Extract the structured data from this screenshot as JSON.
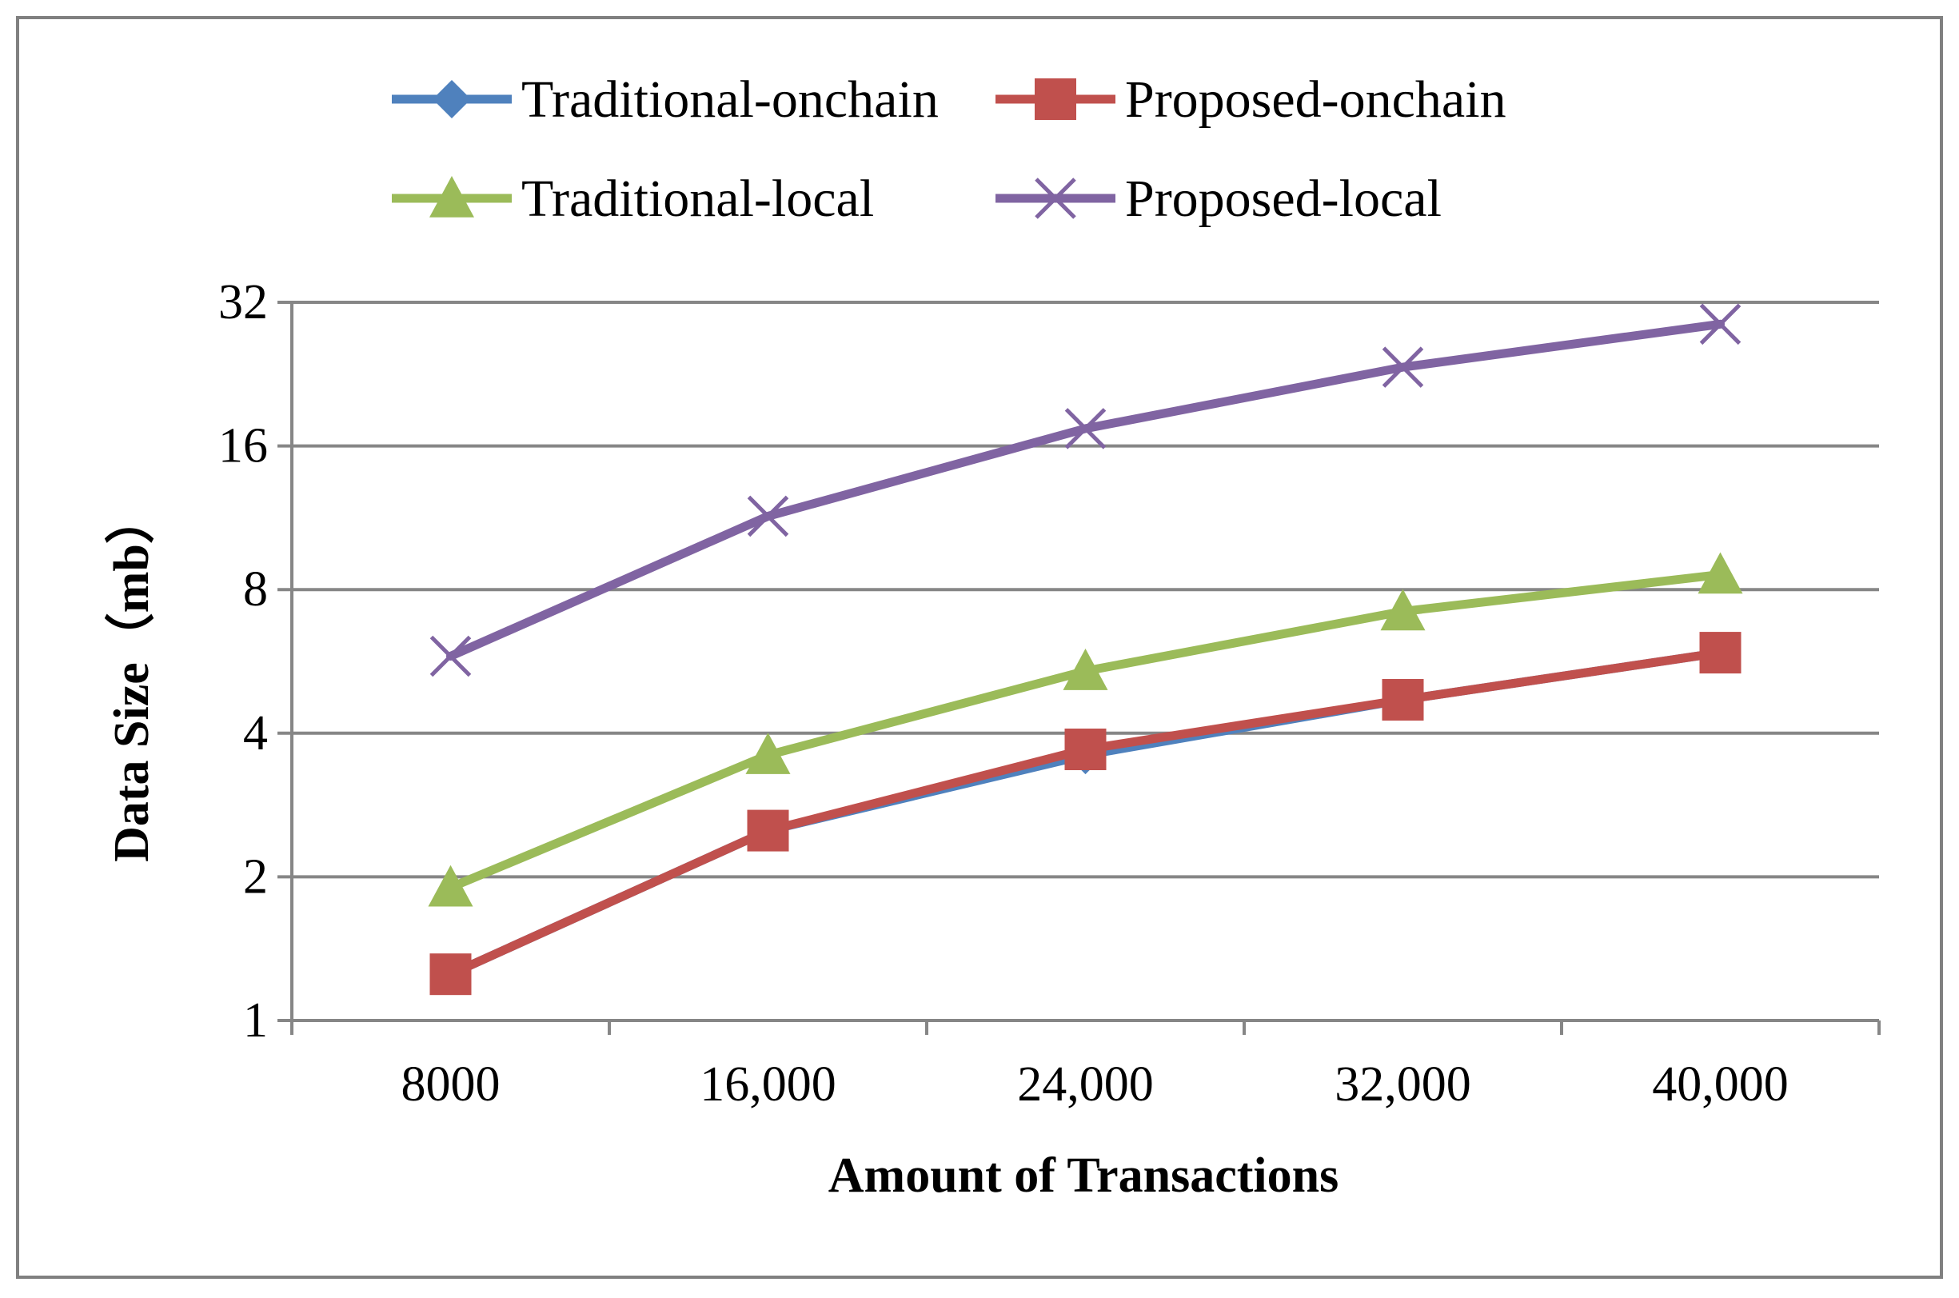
{
  "chart_data": {
    "type": "line",
    "title": "",
    "xlabel": "Amount of Transactions",
    "ylabel": "Data Size（mb）",
    "y_scale": "log2",
    "ylim": [
      1,
      32
    ],
    "y_ticks": [
      "1",
      "2",
      "4",
      "8",
      "16",
      "32"
    ],
    "categories": [
      "8000",
      "16,000",
      "24,000",
      "32,000",
      "40,000"
    ],
    "grid": "horizontal",
    "legend_position": "top",
    "series": [
      {
        "name": "Traditional-onchain",
        "color": "#4f81bd",
        "marker": "diamond",
        "values": [
          1.25,
          2.5,
          3.6,
          4.7,
          5.9
        ]
      },
      {
        "name": "Proposed-onchain",
        "color": "#c0504d",
        "marker": "square",
        "values": [
          1.25,
          2.5,
          3.7,
          4.7,
          5.9
        ]
      },
      {
        "name": "Traditional-local",
        "color": "#9bbb59",
        "marker": "triangle",
        "values": [
          1.9,
          3.6,
          5.4,
          7.2,
          8.6
        ]
      },
      {
        "name": "Proposed-local",
        "color": "#8064a2",
        "marker": "x",
        "values": [
          5.8,
          11.4,
          17.4,
          23.4,
          28.8
        ]
      }
    ]
  }
}
